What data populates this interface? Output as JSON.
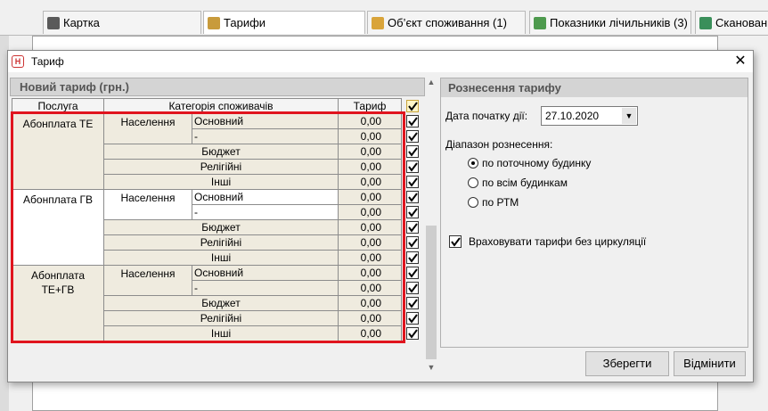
{
  "tabs": [
    "Картка",
    "Тарифи",
    "Об’єкт споживання (1)",
    "Показники лічильників (3)",
    "Сканован"
  ],
  "dialog": {
    "title": "Тариф",
    "left_panel": {
      "title": "Новий тариф (грн.)",
      "columns": [
        "Послуга",
        "Категорія споживачів",
        "Тариф"
      ],
      "groups": [
        {
          "service": "Абонплата ТЕ",
          "category": "Населення",
          "rows": [
            {
              "name": "Основний",
              "tariff": "0,00",
              "checked": true
            },
            {
              "name": "-",
              "tariff": "0,00",
              "checked": true
            },
            {
              "name": "Бюджет",
              "tariff": "0,00",
              "checked": true
            },
            {
              "name": "Релігійні",
              "tariff": "0,00",
              "checked": true
            },
            {
              "name": "Інші",
              "tariff": "0,00",
              "checked": true
            }
          ]
        },
        {
          "service": "Абонплата ГВ",
          "category": "Населення",
          "rows": [
            {
              "name": "Основний",
              "tariff": "0,00",
              "checked": true
            },
            {
              "name": "-",
              "tariff": "0,00",
              "checked": true
            },
            {
              "name": "Бюджет",
              "tariff": "0,00",
              "checked": true
            },
            {
              "name": "Релігійні",
              "tariff": "0,00",
              "checked": true
            },
            {
              "name": "Інші",
              "tariff": "0,00",
              "checked": true
            }
          ]
        },
        {
          "service": "Абонплата ТЕ+ГВ",
          "category": "Населення",
          "rows": [
            {
              "name": "Основний",
              "tariff": "0,00",
              "checked": true
            },
            {
              "name": "-",
              "tariff": "0,00",
              "checked": true
            },
            {
              "name": "Бюджет",
              "tariff": "0,00",
              "checked": true
            },
            {
              "name": "Релігійні",
              "tariff": "0,00",
              "checked": true
            },
            {
              "name": "Інші",
              "tariff": "0,00",
              "checked": true
            }
          ]
        }
      ]
    },
    "right_panel": {
      "title": "Рознесення тарифу",
      "date_label": "Дата початку дії:",
      "date_value": "27.10.2020",
      "range_label": "Діапазон рознесення:",
      "range_options": [
        {
          "label": "по поточному будинку",
          "selected": true
        },
        {
          "label": "по всім будинкам",
          "selected": false
        },
        {
          "label": "по РТМ",
          "selected": false
        }
      ],
      "circulation": {
        "label": "Враховувати тарифи без циркуляції",
        "checked": true
      }
    },
    "buttons": [
      "Зберегти",
      "Відмінити"
    ]
  }
}
